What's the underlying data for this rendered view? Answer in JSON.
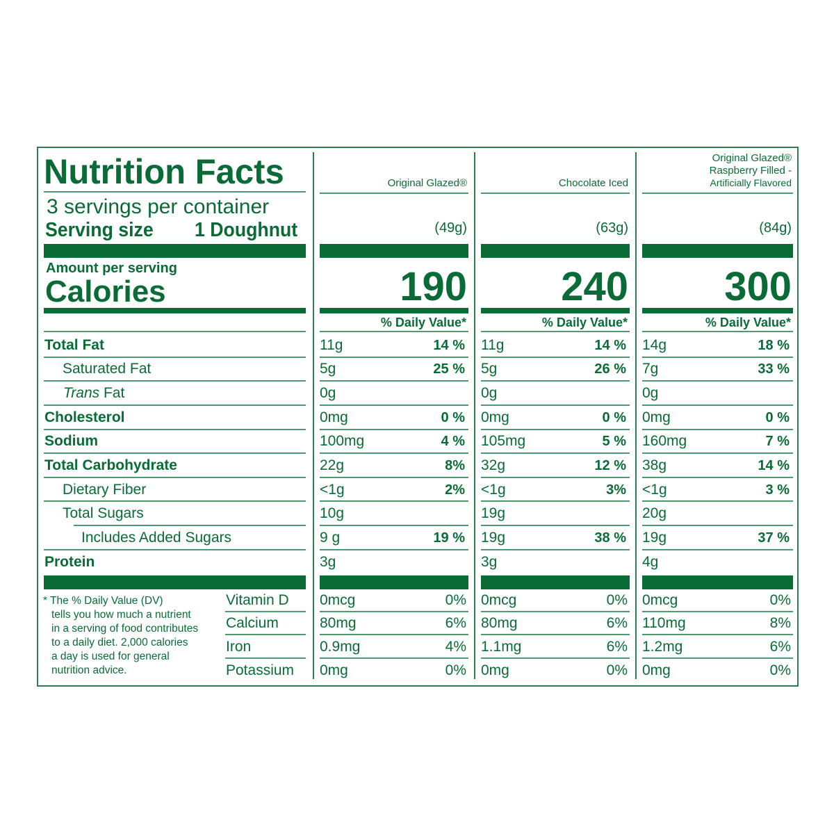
{
  "label": {
    "title": "Nutrition Facts",
    "servings_per_container": "3 servings per container",
    "serving_size_label": "Serving size",
    "serving_size_value": "1 Doughnut",
    "amount_per_serving": "Amount per serving",
    "calories_label": "Calories",
    "daily_value_header": "% Daily Value*",
    "footnote": "* The % Daily Value (DV) tells you how much a nutrient in a serving of food contributes to a daily diet. 2,000 calories a day is used for general nutrition advice.",
    "footnote_lines": [
      "* The % Daily Value (DV)",
      "tells you how much a nutrient",
      "in a serving of food contributes",
      "to a daily diet. 2,000 calories",
      "a day is used for general",
      "nutrition advice."
    ],
    "nutrients": [
      {
        "name": "Total Fat",
        "bold": true
      },
      {
        "name": "Saturated Fat",
        "bold": false
      },
      {
        "name_italic": "Trans",
        "name_rest": " Fat",
        "bold": false
      },
      {
        "name": "Cholesterol",
        "bold": true
      },
      {
        "name": "Sodium",
        "bold": true
      },
      {
        "name": "Total Carbohydrate",
        "bold": true
      },
      {
        "name": "Dietary Fiber",
        "bold": false
      },
      {
        "name": "Total Sugars",
        "bold": false
      },
      {
        "name": "Includes Added Sugars",
        "bold": false
      },
      {
        "name": "Protein",
        "bold": true
      }
    ],
    "vitamins": [
      "Vitamin D",
      "Calcium",
      "Iron",
      "Potassium"
    ]
  },
  "products": [
    {
      "name_lines": [
        "",
        "",
        "Original Glazed®"
      ],
      "serving_weight": "(49g)",
      "calories": "190",
      "nutrients": [
        {
          "amount": "11g",
          "dv": "14 %"
        },
        {
          "amount": "5g",
          "dv": "25 %"
        },
        {
          "amount": "0g",
          "dv": ""
        },
        {
          "amount": "0mg",
          "dv": "0 %"
        },
        {
          "amount": "100mg",
          "dv": "4 %"
        },
        {
          "amount": "22g",
          "dv": "8%"
        },
        {
          "amount": "<1g",
          "dv": "2%"
        },
        {
          "amount": "10g",
          "dv": ""
        },
        {
          "amount": "9 g",
          "dv": "19 %"
        },
        {
          "amount": "3g",
          "dv": ""
        }
      ],
      "vitamins": [
        {
          "amount": "0mcg",
          "dv": "0%"
        },
        {
          "amount": "80mg",
          "dv": "6%"
        },
        {
          "amount": "0.9mg",
          "dv": "4%"
        },
        {
          "amount": "0mg",
          "dv": "0%"
        }
      ]
    },
    {
      "name_lines": [
        "",
        "",
        "Chocolate Iced"
      ],
      "serving_weight": "(63g)",
      "calories": "240",
      "nutrients": [
        {
          "amount": "11g",
          "dv": "14 %"
        },
        {
          "amount": "5g",
          "dv": "26 %"
        },
        {
          "amount": "0g",
          "dv": ""
        },
        {
          "amount": "0mg",
          "dv": "0 %"
        },
        {
          "amount": "105mg",
          "dv": "5 %"
        },
        {
          "amount": "32g",
          "dv": "12 %"
        },
        {
          "amount": "<1g",
          "dv": "3%"
        },
        {
          "amount": "19g",
          "dv": ""
        },
        {
          "amount": "19g",
          "dv": "38 %"
        },
        {
          "amount": "3g",
          "dv": ""
        }
      ],
      "vitamins": [
        {
          "amount": "0mcg",
          "dv": "0%"
        },
        {
          "amount": "80mg",
          "dv": "6%"
        },
        {
          "amount": "1.1mg",
          "dv": "6%"
        },
        {
          "amount": "0mg",
          "dv": "0%"
        }
      ]
    },
    {
      "name_lines": [
        "Original Glazed®",
        "Raspberry Filled -",
        "Artificially Flavored"
      ],
      "serving_weight": "(84g)",
      "calories": "300",
      "nutrients": [
        {
          "amount": "14g",
          "dv": "18 %"
        },
        {
          "amount": "7g",
          "dv": "33 %"
        },
        {
          "amount": "0g",
          "dv": ""
        },
        {
          "amount": "0mg",
          "dv": "0 %"
        },
        {
          "amount": "160mg",
          "dv": "7 %"
        },
        {
          "amount": "38g",
          "dv": "14 %"
        },
        {
          "amount": "<1g",
          "dv": "3 %"
        },
        {
          "amount": "20g",
          "dv": ""
        },
        {
          "amount": "19g",
          "dv": "37 %"
        },
        {
          "amount": "4g",
          "dv": ""
        }
      ],
      "vitamins": [
        {
          "amount": "0mcg",
          "dv": "0%"
        },
        {
          "amount": "110mg",
          "dv": "8%"
        },
        {
          "amount": "1.2mg",
          "dv": "6%"
        },
        {
          "amount": "0mg",
          "dv": "0%"
        }
      ]
    }
  ],
  "colors": {
    "ink": "#0a6b37",
    "rule": "#4d9a70",
    "border": "#2e7d4f",
    "background": "#ffffff"
  }
}
